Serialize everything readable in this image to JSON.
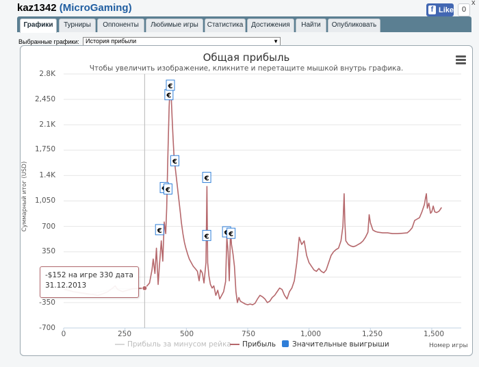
{
  "header": {
    "player": "kaz1342",
    "open_paren": " (",
    "network": "MicroGaming",
    "close_paren": ")",
    "like_label": "Like",
    "like_count": "0",
    "close_glyph": "x"
  },
  "tabs": [
    {
      "label": "Графики",
      "active": true
    },
    {
      "label": "Турниры"
    },
    {
      "label": "Оппоненты"
    },
    {
      "label": "Любимые игры"
    },
    {
      "label": "Статистика"
    },
    {
      "label": "Достижения"
    },
    {
      "label": "Найти"
    },
    {
      "label": "Опубликовать"
    }
  ],
  "selector": {
    "label": "Выбранные графики:",
    "value": "История прибыли"
  },
  "colors": {
    "profit_line": "#b5676b",
    "rake_line": "#d8d8d8",
    "big_wins": "#2f7ed8",
    "tab_bar": "#5b7f92"
  },
  "chart": {
    "title": "Общая прибыль",
    "subtitle": "Чтобы увеличить изображение, кликните и перетащите мышкой внутрь графика.",
    "ylabel": "Суммарный итог (USD)",
    "xlabel": "Номер игры",
    "y_ticks": [
      "2.8K",
      "2,450",
      "2.1K",
      "1,750",
      "1.4K",
      "1,050",
      "700",
      "350",
      "0",
      "-350",
      "-700"
    ],
    "x_ticks": [
      "0",
      "250",
      "500",
      "750",
      "1,000",
      "1,250",
      "1,500"
    ],
    "legend": [
      "Прибыль за минусом рейка",
      "Прибыль",
      "Значительные выигрыши"
    ],
    "tooltip_line1": "-$152 на игре 330 дата",
    "tooltip_line2": "31.12.2013",
    "menu_icon": "menu-icon",
    "marker_glyph": "€"
  },
  "chart_data": {
    "type": "line",
    "title": "Общая прибыль",
    "xlabel": "Номер игры",
    "ylabel": "Суммарный итог (USD)",
    "xlim": [
      0,
      1620
    ],
    "ylim": [
      -700,
      2800
    ],
    "grid": true,
    "legend_position": "bottom",
    "series": [
      {
        "name": "Прибыль",
        "points": [
          [
            0,
            -160
          ],
          [
            20,
            -180
          ],
          [
            40,
            -200
          ],
          [
            60,
            -210
          ],
          [
            80,
            -220
          ],
          [
            100,
            -230
          ],
          [
            120,
            -240
          ],
          [
            140,
            -250
          ],
          [
            160,
            -230
          ],
          [
            180,
            -200
          ],
          [
            200,
            -150
          ],
          [
            210,
            -120
          ],
          [
            220,
            -170
          ],
          [
            240,
            -200
          ],
          [
            260,
            -180
          ],
          [
            280,
            -160
          ],
          [
            300,
            -155
          ],
          [
            320,
            -152
          ],
          [
            330,
            -152
          ],
          [
            340,
            -120
          ],
          [
            350,
            -80
          ],
          [
            360,
            100
          ],
          [
            365,
            250
          ],
          [
            372,
            50
          ],
          [
            378,
            400
          ],
          [
            385,
            -100
          ],
          [
            390,
            150
          ],
          [
            398,
            500
          ],
          [
            404,
            220
          ],
          [
            410,
            760
          ],
          [
            416,
            600
          ],
          [
            420,
            950
          ],
          [
            425,
            1700
          ],
          [
            430,
            2350
          ],
          [
            434,
            2650
          ],
          [
            438,
            2520
          ],
          [
            442,
            2200
          ],
          [
            446,
            1900
          ],
          [
            450,
            1650
          ],
          [
            455,
            1500
          ],
          [
            460,
            1350
          ],
          [
            465,
            1200
          ],
          [
            470,
            1050
          ],
          [
            475,
            900
          ],
          [
            480,
            750
          ],
          [
            486,
            600
          ],
          [
            492,
            480
          ],
          [
            498,
            400
          ],
          [
            505,
            320
          ],
          [
            512,
            250
          ],
          [
            520,
            200
          ],
          [
            528,
            150
          ],
          [
            536,
            120
          ],
          [
            545,
            80
          ],
          [
            552,
            -50
          ],
          [
            558,
            100
          ],
          [
            565,
            60
          ],
          [
            572,
            -80
          ],
          [
            580,
            200
          ],
          [
            584,
            1250
          ],
          [
            587,
            200
          ],
          [
            592,
            20
          ],
          [
            598,
            -100
          ],
          [
            605,
            -150
          ],
          [
            612,
            -120
          ],
          [
            620,
            -250
          ],
          [
            628,
            -180
          ],
          [
            636,
            -300
          ],
          [
            644,
            -250
          ],
          [
            652,
            -200
          ],
          [
            660,
            -60
          ],
          [
            665,
            550
          ],
          [
            670,
            350
          ],
          [
            675,
            -50
          ],
          [
            680,
            650
          ],
          [
            684,
            450
          ],
          [
            690,
            320
          ],
          [
            696,
            150
          ],
          [
            702,
            -200
          ],
          [
            708,
            -350
          ],
          [
            714,
            -280
          ],
          [
            720,
            -330
          ],
          [
            730,
            -350
          ],
          [
            740,
            -370
          ],
          [
            750,
            -380
          ],
          [
            760,
            -370
          ],
          [
            770,
            -380
          ],
          [
            780,
            -360
          ],
          [
            790,
            -300
          ],
          [
            800,
            -250
          ],
          [
            810,
            -270
          ],
          [
            820,
            -300
          ],
          [
            830,
            -350
          ],
          [
            840,
            -330
          ],
          [
            850,
            -280
          ],
          [
            860,
            -250
          ],
          [
            870,
            -200
          ],
          [
            880,
            -150
          ],
          [
            890,
            -170
          ],
          [
            900,
            -250
          ],
          [
            910,
            -300
          ],
          [
            920,
            -200
          ],
          [
            930,
            -150
          ],
          [
            940,
            -50
          ],
          [
            950,
            200
          ],
          [
            960,
            550
          ],
          [
            970,
            450
          ],
          [
            980,
            500
          ],
          [
            990,
            300
          ],
          [
            1000,
            200
          ],
          [
            1010,
            150
          ],
          [
            1020,
            100
          ],
          [
            1030,
            80
          ],
          [
            1040,
            120
          ],
          [
            1050,
            80
          ],
          [
            1060,
            60
          ],
          [
            1070,
            100
          ],
          [
            1080,
            200
          ],
          [
            1090,
            300
          ],
          [
            1100,
            350
          ],
          [
            1110,
            380
          ],
          [
            1120,
            400
          ],
          [
            1130,
            500
          ],
          [
            1138,
            700
          ],
          [
            1143,
            1150
          ],
          [
            1146,
            750
          ],
          [
            1150,
            500
          ],
          [
            1160,
            450
          ],
          [
            1170,
            430
          ],
          [
            1180,
            420
          ],
          [
            1190,
            430
          ],
          [
            1200,
            450
          ],
          [
            1210,
            470
          ],
          [
            1220,
            500
          ],
          [
            1230,
            550
          ],
          [
            1240,
            620
          ],
          [
            1245,
            860
          ],
          [
            1250,
            750
          ],
          [
            1260,
            650
          ],
          [
            1270,
            630
          ],
          [
            1280,
            620
          ],
          [
            1300,
            610
          ],
          [
            1320,
            610
          ],
          [
            1340,
            600
          ],
          [
            1360,
            600
          ],
          [
            1380,
            605
          ],
          [
            1400,
            610
          ],
          [
            1410,
            640
          ],
          [
            1420,
            680
          ],
          [
            1430,
            780
          ],
          [
            1440,
            800
          ],
          [
            1450,
            820
          ],
          [
            1460,
            900
          ],
          [
            1470,
            1000
          ],
          [
            1475,
            1100
          ],
          [
            1478,
            1150
          ],
          [
            1482,
            950
          ],
          [
            1488,
            1020
          ],
          [
            1495,
            880
          ],
          [
            1500,
            900
          ],
          [
            1506,
            980
          ],
          [
            1512,
            900
          ],
          [
            1520,
            890
          ],
          [
            1530,
            910
          ],
          [
            1540,
            960
          ]
        ]
      },
      {
        "name": "Прибыль за минусом рейка",
        "points": [
          [
            0,
            -175
          ],
          [
            100,
            -245
          ],
          [
            200,
            -160
          ],
          [
            330,
            -160
          ],
          [
            340,
            -130
          ]
        ]
      },
      {
        "name": "Значительные выигрыши",
        "type": "marker",
        "markers": [
          {
            "x": 391,
            "y": 650
          },
          {
            "x": 410,
            "y": 1230
          },
          {
            "x": 425,
            "y": 1210
          },
          {
            "x": 429,
            "y": 2510
          },
          {
            "x": 435,
            "y": 2640
          },
          {
            "x": 453,
            "y": 1600
          },
          {
            "x": 583,
            "y": 1370
          },
          {
            "x": 583,
            "y": 570
          },
          {
            "x": 664,
            "y": 620
          },
          {
            "x": 682,
            "y": 600
          }
        ]
      }
    ]
  }
}
